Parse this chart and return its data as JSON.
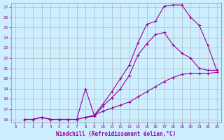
{
  "xlabel": "Windchill (Refroidissement éolien,°C)",
  "bg_color": "#cceeff",
  "line_color": "#990099",
  "xlim": [
    0,
    23
  ],
  "ylim": [
    16,
    27
  ],
  "xticks": [
    0,
    1,
    2,
    3,
    4,
    5,
    6,
    7,
    8,
    9,
    10,
    11,
    12,
    13,
    14,
    15,
    16,
    17,
    18,
    19,
    20,
    21,
    22,
    23
  ],
  "yticks": [
    16,
    17,
    18,
    19,
    20,
    21,
    22,
    23,
    24,
    25,
    26,
    27
  ],
  "line1_x": [
    1,
    2,
    3,
    4,
    5,
    6,
    7,
    8,
    9,
    10,
    11,
    12,
    13,
    14,
    15,
    16,
    17,
    18,
    19,
    20,
    21,
    22,
    23
  ],
  "line1_y": [
    16,
    16,
    16.2,
    16,
    16,
    16,
    16,
    16.2,
    16.3,
    17.3,
    18.1,
    19.0,
    20.3,
    22.3,
    23.4,
    24.3,
    24.5,
    23.3,
    22.5,
    22.0,
    21.0,
    20.8,
    20.8
  ],
  "line2_x": [
    1,
    2,
    3,
    4,
    5,
    6,
    7,
    8,
    9,
    10,
    11,
    12,
    13,
    14,
    15,
    16,
    17,
    18,
    19,
    20,
    21,
    22,
    23
  ],
  "line2_y": [
    16,
    16,
    16.2,
    16,
    16,
    16,
    16,
    16.2,
    16.4,
    17.5,
    18.7,
    20.0,
    21.3,
    23.5,
    25.3,
    25.6,
    27.1,
    27.2,
    27.2,
    26.0,
    25.2,
    23.2,
    20.8
  ],
  "line3_x": [
    1,
    2,
    3,
    4,
    5,
    6,
    7,
    8,
    9,
    10,
    11,
    12,
    13,
    14,
    15,
    16,
    17,
    18,
    19,
    20,
    21,
    22,
    23
  ],
  "line3_y": [
    16,
    16,
    16.2,
    16,
    16,
    16,
    16,
    19.0,
    16.4,
    16.8,
    17.1,
    17.4,
    17.7,
    18.2,
    18.7,
    19.2,
    19.7,
    20.1,
    20.4,
    20.5,
    20.5,
    20.5,
    20.6
  ]
}
